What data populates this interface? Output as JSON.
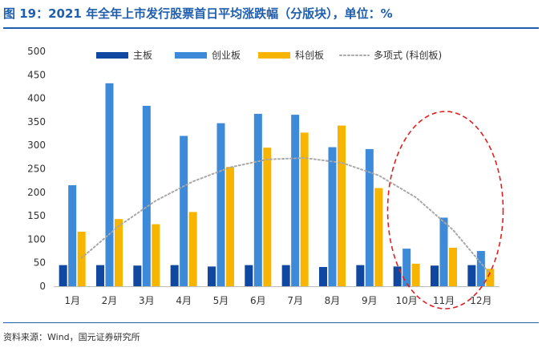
{
  "header": {
    "title": "图 19：2021 年全年上市发行股票首日平均涨跌幅（分版块），单位：%"
  },
  "footer": {
    "source": "资料来源：Wind，国元证券研究所"
  },
  "colors": {
    "main": "#0f47a1",
    "chinext": "#3d8ad8",
    "star": "#f7b500",
    "trend": "#a8a8a8",
    "highlight": "#e01e1e",
    "brand": "#1f5fae"
  },
  "chart_data": {
    "type": "bar",
    "title": "",
    "xlabel": "",
    "ylabel": "",
    "ylim": [
      0,
      500
    ],
    "yticks": [
      0,
      50,
      100,
      150,
      200,
      250,
      300,
      350,
      400,
      450,
      500
    ],
    "grid": false,
    "legend_position": "top-right",
    "categories": [
      "1月",
      "2月",
      "3月",
      "4月",
      "5月",
      "6月",
      "7月",
      "8月",
      "9月",
      "10月",
      "11月",
      "12月"
    ],
    "series": [
      {
        "name": "主板",
        "values": [
          45,
          45,
          44,
          45,
          42,
          45,
          45,
          41,
          45,
          42,
          44,
          45
        ]
      },
      {
        "name": "创业板",
        "values": [
          215,
          432,
          384,
          320,
          347,
          367,
          365,
          296,
          292,
          80,
          146,
          75
        ]
      },
      {
        "name": "科创板",
        "values": [
          116,
          143,
          132,
          158,
          254,
          295,
          327,
          342,
          209,
          48,
          82,
          37
        ]
      }
    ],
    "trendline": {
      "name": "多项式 (科创板)",
      "of_series": "科创板",
      "kind": "polynomial",
      "values": [
        60,
        128,
        182,
        223,
        253,
        270,
        273,
        263,
        236,
        189,
        120,
        26
      ]
    },
    "annotation": "dashed ellipse highlighting 10月–12月"
  }
}
